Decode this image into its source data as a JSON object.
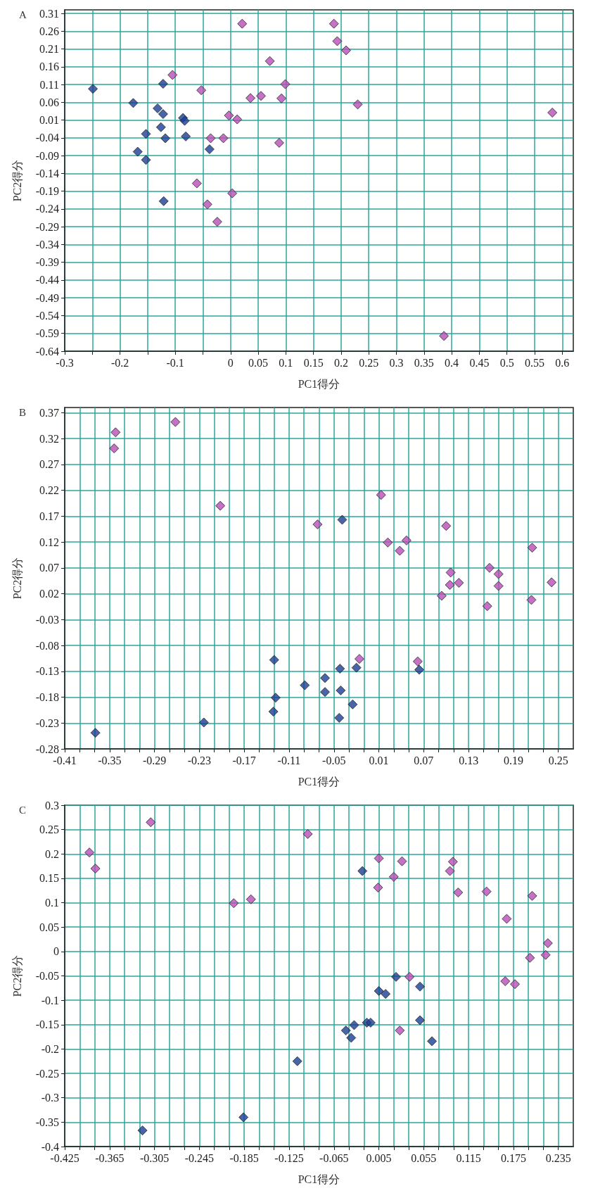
{
  "chart_data": [
    {
      "type": "scatter",
      "title": "A",
      "xlabel": "PC1得分",
      "ylabel": "PC2得分",
      "marker": "diamond",
      "grid": true,
      "xlim": [
        -0.3,
        0.62
      ],
      "ylim": [
        -0.64,
        0.32
      ],
      "xticks": [
        -0.3,
        {
          "value": -0.25,
          "label": null
        },
        -0.2,
        {
          "value": -0.15,
          "label": null
        },
        -0.1,
        {
          "value": -0.05,
          "label": null
        },
        0,
        0.05,
        0.1,
        0.15,
        0.2,
        0.25,
        0.3,
        0.35,
        0.4,
        0.45,
        0.5,
        0.55,
        0.6
      ],
      "yticks": [
        -0.64,
        -0.59,
        -0.54,
        -0.49,
        -0.44,
        -0.39,
        -0.34,
        -0.29,
        -0.24,
        -0.19,
        -0.14,
        -0.09,
        -0.04,
        0.01,
        0.06,
        0.11,
        0.16,
        0.21,
        0.26,
        0.31
      ],
      "series": [
        {
          "color": "#1c3f94",
          "x": [
            -0.249,
            -0.176,
            -0.122,
            -0.132,
            -0.122,
            -0.086,
            -0.083,
            -0.126,
            -0.153,
            -0.118,
            -0.081,
            -0.038,
            -0.168,
            -0.153,
            -0.121
          ],
          "values": [
            0.098,
            0.058,
            0.112,
            0.043,
            0.027,
            0.016,
            0.008,
            -0.01,
            -0.029,
            -0.041,
            -0.036,
            -0.072,
            -0.079,
            -0.102,
            -0.218
          ]
        },
        {
          "color": "#b84db8",
          "x": [
            0.021,
            -0.105,
            -0.053,
            0.187,
            0.193,
            0.209,
            0.071,
            0.099,
            0.036,
            0.055,
            0.092,
            0.23,
            0.582,
            -0.003,
            0.012,
            -0.036,
            -0.013,
            0.088,
            -0.061,
            0.003,
            -0.042,
            -0.024,
            0.386
          ],
          "values": [
            0.281,
            0.137,
            0.094,
            0.281,
            0.232,
            0.206,
            0.176,
            0.111,
            0.072,
            0.078,
            0.071,
            0.054,
            0.031,
            0.023,
            0.012,
            -0.041,
            -0.041,
            -0.054,
            -0.168,
            -0.196,
            -0.227,
            -0.276,
            -0.597
          ]
        }
      ]
    },
    {
      "type": "scatter",
      "title": "B",
      "xlabel": "PC1得分",
      "ylabel": "PC2得分",
      "marker": "diamond",
      "grid": true,
      "xlim": [
        -0.41,
        0.27
      ],
      "ylim": [
        -0.28,
        0.38
      ],
      "xticks": [
        -0.41,
        {
          "value": -0.39,
          "label": null
        },
        {
          "value": -0.37,
          "label": null
        },
        -0.35,
        {
          "value": -0.33,
          "label": null
        },
        {
          "value": -0.31,
          "label": null
        },
        -0.29,
        {
          "value": -0.27,
          "label": null
        },
        {
          "value": -0.25,
          "label": null
        },
        -0.23,
        {
          "value": -0.21,
          "label": null
        },
        {
          "value": -0.19,
          "label": null
        },
        -0.17,
        {
          "value": -0.15,
          "label": null
        },
        {
          "value": -0.13,
          "label": null
        },
        -0.11,
        {
          "value": -0.09,
          "label": null
        },
        {
          "value": -0.07,
          "label": null
        },
        -0.05,
        {
          "value": -0.03,
          "label": null
        },
        {
          "value": -0.01,
          "label": null
        },
        0.01,
        {
          "value": 0.03,
          "label": null
        },
        {
          "value": 0.05,
          "label": null
        },
        0.07,
        {
          "value": 0.09,
          "label": null
        },
        {
          "value": 0.11,
          "label": null
        },
        0.13,
        {
          "value": 0.15,
          "label": null
        },
        {
          "value": 0.17,
          "label": null
        },
        0.19,
        {
          "value": 0.21,
          "label": null
        },
        {
          "value": 0.23,
          "label": null
        },
        0.25
      ],
      "yticks": [
        -0.28,
        -0.23,
        -0.18,
        -0.13,
        -0.08,
        -0.03,
        0.02,
        0.07,
        0.12,
        0.17,
        0.22,
        0.27,
        0.32,
        0.37
      ],
      "series": [
        {
          "color": "#1c3f94",
          "x": [
            -0.369,
            -0.224,
            -0.13,
            -0.128,
            -0.131,
            -0.089,
            -0.062,
            -0.062,
            -0.042,
            -0.041,
            -0.043,
            -0.025,
            -0.02,
            -0.039,
            0.064
          ],
          "values": [
            -0.249,
            -0.229,
            -0.108,
            -0.181,
            -0.208,
            -0.157,
            -0.143,
            -0.17,
            -0.125,
            -0.167,
            -0.22,
            -0.194,
            -0.123,
            0.163,
            -0.127
          ]
        },
        {
          "color": "#b84db8",
          "x": [
            -0.342,
            -0.344,
            -0.262,
            -0.202,
            -0.072,
            0.013,
            0.022,
            0.038,
            0.047,
            -0.016,
            0.062,
            0.1,
            0.106,
            0.105,
            0.117,
            0.094,
            0.158,
            0.17,
            0.17,
            0.155,
            0.215,
            0.214,
            0.241
          ],
          "values": [
            0.332,
            0.301,
            0.352,
            0.19,
            0.154,
            0.211,
            0.119,
            0.103,
            0.123,
            -0.106,
            -0.111,
            0.151,
            0.061,
            0.037,
            0.041,
            0.016,
            0.07,
            0.058,
            0.035,
            -0.004,
            0.109,
            0.008,
            0.042
          ]
        }
      ]
    },
    {
      "type": "scatter",
      "title": "C",
      "xlabel": "PC1得分",
      "ylabel": "PC2得分",
      "marker": "diamond",
      "grid": true,
      "xlim": [
        -0.425,
        0.255
      ],
      "ylim": [
        -0.4,
        0.3
      ],
      "xticks": [
        -0.425,
        {
          "value": -0.405,
          "label": null
        },
        {
          "value": -0.385,
          "label": null
        },
        -0.365,
        {
          "value": -0.345,
          "label": null
        },
        {
          "value": -0.325,
          "label": null
        },
        -0.305,
        {
          "value": -0.285,
          "label": null
        },
        {
          "value": -0.265,
          "label": null
        },
        -0.245,
        {
          "value": -0.225,
          "label": null
        },
        {
          "value": -0.205,
          "label": null
        },
        -0.185,
        {
          "value": -0.165,
          "label": null
        },
        {
          "value": -0.145,
          "label": null
        },
        -0.125,
        {
          "value": -0.105,
          "label": null
        },
        {
          "value": -0.085,
          "label": null
        },
        -0.065,
        {
          "value": -0.045,
          "label": null
        },
        {
          "value": -0.025,
          "label": null
        },
        {
          "value": -0.005,
          "label": "0.005"
        },
        {
          "value": 0.015,
          "label": null
        },
        {
          "value": 0.035,
          "label": null
        },
        0.055,
        {
          "value": 0.075,
          "label": null
        },
        {
          "value": 0.095,
          "label": null
        },
        0.115,
        {
          "value": 0.135,
          "label": null
        },
        {
          "value": 0.155,
          "label": null
        },
        0.175,
        {
          "value": 0.195,
          "label": null
        },
        {
          "value": 0.215,
          "label": null
        },
        0.235
      ],
      "yticks": [
        -0.4,
        -0.35,
        -0.3,
        -0.25,
        -0.2,
        -0.15,
        -0.1,
        -0.05,
        0,
        0.05,
        0.1,
        0.15,
        0.2,
        0.25,
        0.3
      ],
      "series": [
        {
          "color": "#1c3f94",
          "x": [
            -0.321,
            -0.186,
            -0.114,
            -0.049,
            -0.042,
            -0.038,
            -0.021,
            -0.016,
            -0.027,
            -0.005,
            0.004,
            0.018,
            0.05,
            0.05,
            0.066
          ],
          "values": [
            -0.367,
            -0.34,
            -0.225,
            -0.162,
            -0.177,
            -0.151,
            -0.146,
            -0.146,
            0.165,
            -0.081,
            -0.087,
            -0.052,
            -0.072,
            -0.141,
            -0.184
          ]
        },
        {
          "color": "#b84db8",
          "x": [
            -0.392,
            -0.384,
            -0.31,
            -0.1,
            -0.199,
            -0.176,
            -0.005,
            -0.006,
            0.015,
            0.026,
            0.036,
            0.023,
            0.09,
            0.094,
            0.101,
            0.139,
            0.166,
            0.2,
            0.164,
            0.177,
            0.197,
            0.218,
            0.221
          ],
          "values": [
            0.203,
            0.17,
            0.265,
            0.241,
            0.099,
            0.107,
            0.191,
            0.131,
            0.153,
            0.185,
            -0.052,
            -0.162,
            0.165,
            0.184,
            0.121,
            0.123,
            0.067,
            0.114,
            -0.061,
            -0.067,
            -0.013,
            -0.007,
            0.017
          ]
        }
      ]
    }
  ]
}
